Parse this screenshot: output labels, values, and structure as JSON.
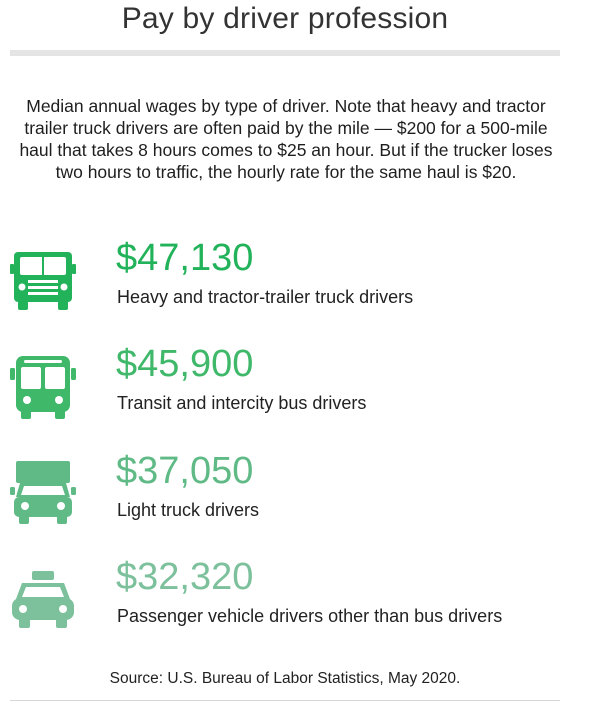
{
  "title": "Pay by driver profession",
  "subtitle": "Median annual wages by type of driver. Note that heavy and tractor trailer truck drivers are often paid by the mile — $200 for a 500-mile haul that takes 8 hours comes to $25 an hour. But if the trucker loses two hours to traffic, the hourly rate for the same haul is $20.",
  "items": [
    {
      "amount": "$47,130",
      "label": "Heavy and tractor-trailer truck drivers",
      "icon": "semi-truck-icon",
      "color": "#22b35a"
    },
    {
      "amount": "$45,900",
      "label": "Transit and intercity bus drivers",
      "icon": "bus-icon",
      "color": "#3fb86a"
    },
    {
      "amount": "$37,050",
      "label": "Light truck drivers",
      "icon": "light-truck-icon",
      "color": "#5fba86"
    },
    {
      "amount": "$32,320",
      "label": "Passenger vehicle drivers other than bus drivers",
      "icon": "taxi-icon",
      "color": "#7cc09c"
    }
  ],
  "source": "Source: U.S. Bureau of Labor Statistics, May 2020."
}
